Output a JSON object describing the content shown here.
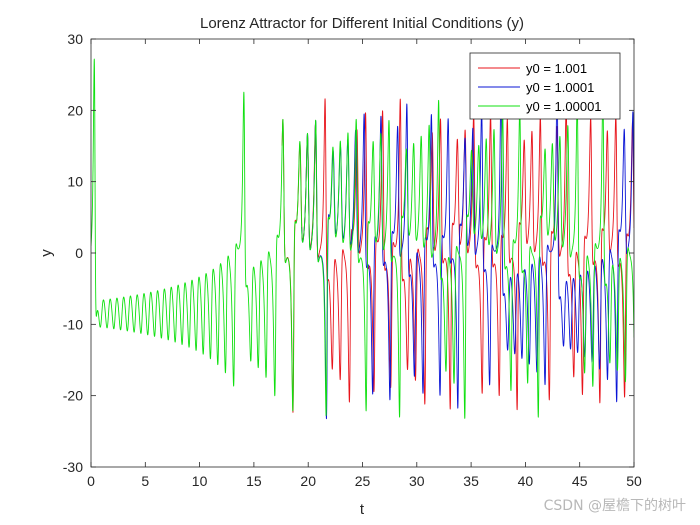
{
  "chart_data": {
    "type": "line",
    "title": "Lorenz Attractor for Different Initial Conditions (y)",
    "xlabel": "t",
    "ylabel": "y",
    "xlim": [
      0,
      50
    ],
    "ylim": [
      -30,
      30
    ],
    "xticks": [
      0,
      5,
      10,
      15,
      20,
      25,
      30,
      35,
      40,
      45,
      50
    ],
    "yticks": [
      -30,
      -20,
      -10,
      0,
      10,
      20,
      30
    ],
    "grid": false,
    "legend_position": "top-right",
    "series": [
      {
        "name": "y0 = 1.001",
        "color": "#e8141b",
        "diverge_t": 17.6
      },
      {
        "name": "y0 = 1.0001",
        "color": "#0a14d6",
        "diverge_t": 19.4
      },
      {
        "name": "y0 = 1.00001",
        "color": "#10e010",
        "diverge_t": null
      }
    ]
  },
  "watermark": "CSDN @屋檐下的树叶"
}
